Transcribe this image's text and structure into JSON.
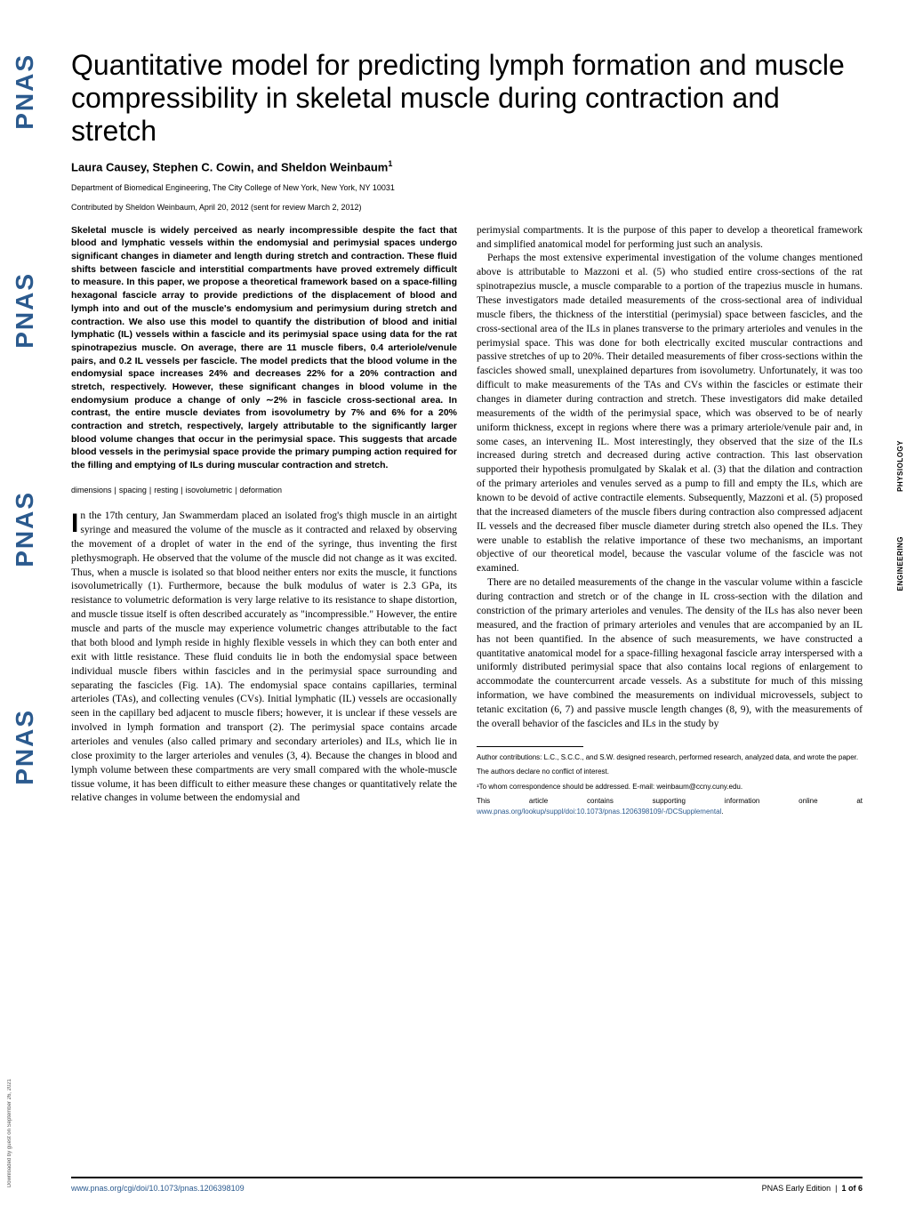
{
  "logo_text": "PNAS",
  "download_note": "Downloaded by guest on September 26, 2021",
  "title": "Quantitative model for predicting lymph formation and muscle compressibility in skeletal muscle during contraction and stretch",
  "authors_html": "Laura Causey, Stephen C. Cowin, and Sheldon Weinbaum",
  "author_sup": "1",
  "affiliation": "Department of Biomedical Engineering, The City College of New York, New York, NY 10031",
  "contributed": "Contributed by Sheldon Weinbaum, April 20, 2012 (sent for review March 2, 2012)",
  "abstract": "Skeletal muscle is widely perceived as nearly incompressible despite the fact that blood and lymphatic vessels within the endomysial and perimysial spaces undergo significant changes in diameter and length during stretch and contraction. These fluid shifts between fascicle and interstitial compartments have proved extremely difficult to measure. In this paper, we propose a theoretical framework based on a space-filling hexagonal fascicle array to provide predictions of the displacement of blood and lymph into and out of the muscle's endomysium and perimysium during stretch and contraction. We also use this model to quantify the distribution of blood and initial lymphatic (IL) vessels within a fascicle and its perimysial space using data for the rat spinotrapezius muscle. On average, there are 11 muscle fibers, 0.4 arteriole/venule pairs, and 0.2 IL vessels per fascicle. The model predicts that the blood volume in the endomysial space increases 24% and decreases 22% for a 20% contraction and stretch, respectively. However, these significant changes in blood volume in the endomysium produce a change of only ∼2% in fascicle cross-sectional area. In contrast, the entire muscle deviates from isovolumetry by 7% and 6% for a 20% contraction and stretch, respectively, largely attributable to the significantly larger blood volume changes that occur in the perimysial space. This suggests that arcade blood vessels in the perimysial space provide the primary pumping action required for the filling and emptying of ILs during muscular contraction and stretch.",
  "keywords": [
    "dimensions",
    "spacing",
    "resting",
    "isovolumetric",
    "deformation"
  ],
  "col1_body_first": "n the 17th century, Jan Swammerdam placed an isolated frog's thigh muscle in an airtight syringe and measured the volume of the muscle as it contracted and relaxed by observing the movement of a droplet of water in the end of the syringe, thus inventing the first plethysmograph. He observed that the volume of the muscle did not change as it was excited. Thus, when a muscle is isolated so that blood neither enters nor exits the muscle, it functions isovolumetrically (1). Furthermore, because the bulk modulus of water is 2.3 GPa, its resistance to volumetric deformation is very large relative to its resistance to shape distortion, and muscle tissue itself is often described accurately as \"incompressible.\" However, the entire muscle and parts of the muscle may experience volumetric changes attributable to the fact that both blood and lymph reside in highly flexible vessels in which they can both enter and exit with little resistance. These fluid conduits lie in both the endomysial space between individual muscle fibers within fascicles and in the perimysial space surrounding and separating the fascicles (Fig. 1A). The endomysial space contains capillaries, terminal arterioles (TAs), and collecting venules (CVs). Initial lymphatic (IL) vessels are occasionally seen in the capillary bed adjacent to muscle fibers; however, it is unclear if these vessels are involved in lymph formation and transport (2). The perimysial space contains arcade arterioles and venules (also called primary and secondary arterioles) and ILs, which lie in close proximity to the larger arterioles and venules (3, 4). Because the changes in blood and lymph volume between these compartments are very small compared with the whole-muscle tissue volume, it has been difficult to either measure these changes or quantitatively relate the relative changes in volume between the endomysial and",
  "col2_p1": "perimysial compartments. It is the purpose of this paper to develop a theoretical framework and simplified anatomical model for performing just such an analysis.",
  "col2_p2": "Perhaps the most extensive experimental investigation of the volume changes mentioned above is attributable to Mazzoni et al. (5) who studied entire cross-sections of the rat spinotrapezius muscle, a muscle comparable to a portion of the trapezius muscle in humans. These investigators made detailed measurements of the cross-sectional area of individual muscle fibers, the thickness of the interstitial (perimysial) space between fascicles, and the cross-sectional area of the ILs in planes transverse to the primary arterioles and venules in the perimysial space. This was done for both electrically excited muscular contractions and passive stretches of up to 20%. Their detailed measurements of fiber cross-sections within the fascicles showed small, unexplained departures from isovolumetry. Unfortunately, it was too difficult to make measurements of the TAs and CVs within the fascicles or estimate their changes in diameter during contraction and stretch. These investigators did make detailed measurements of the width of the perimysial space, which was observed to be of nearly uniform thickness, except in regions where there was a primary arteriole/venule pair and, in some cases, an intervening IL. Most interestingly, they observed that the size of the ILs increased during stretch and decreased during active contraction. This last observation supported their hypothesis promulgated by Skalak et al. (3) that the dilation and contraction of the primary arterioles and venules served as a pump to fill and empty the ILs, which are known to be devoid of active contractile elements. Subsequently, Mazzoni et al. (5) proposed that the increased diameters of the muscle fibers during contraction also compressed adjacent IL vessels and the decreased fiber muscle diameter during stretch also opened the ILs. They were unable to establish the relative importance of these two mechanisms, an important objective of our theoretical model, because the vascular volume of the fascicle was not examined.",
  "col2_p3": "There are no detailed measurements of the change in the vascular volume within a fascicle during contraction and stretch or of the change in IL cross-section with the dilation and constriction of the primary arterioles and venules. The density of the ILs has also never been measured, and the fraction of primary arterioles and venules that are accompanied by an IL has not been quantified. In the absence of such measurements, we have constructed a quantitative anatomical model for a space-filling hexagonal fascicle array interspersed with a uniformly distributed perimysial space that also contains local regions of enlargement to accommodate the countercurrent arcade vessels. As a substitute for much of this missing information, we have combined the measurements on individual microvessels, subject to tetanic excitation (6, 7) and passive muscle length changes (8, 9), with the measurements of the overall behavior of the fascicles and ILs in the study by",
  "footnotes": {
    "contrib": "Author contributions: L.C., S.C.C., and S.W. designed research, performed research, analyzed data, and wrote the paper.",
    "conflict": "The authors declare no conflict of interest.",
    "corresp": "¹To whom correspondence should be addressed. E-mail: weinbaum@ccny.cuny.edu.",
    "supp_pre": "This article contains supporting information online at ",
    "supp_link": "www.pnas.org/lookup/suppl/doi:10.1073/pnas.1206398109/-/DCSupplemental",
    "supp_post": "."
  },
  "footer": {
    "left": "www.pnas.org/cgi/doi/10.1073/pnas.1206398109",
    "right_journal": "PNAS Early Edition",
    "right_page": "1 of 6"
  },
  "side_tabs": [
    "PHYSIOLOGY",
    "ENGINEERING"
  ],
  "colors": {
    "link": "#2b5a8e",
    "logo": "#2b5a8e",
    "text": "#000000",
    "background": "#ffffff"
  },
  "typography": {
    "title_fontsize": 32,
    "title_family": "Arial",
    "body_fontsize": 11.5,
    "body_family": "Georgia",
    "abstract_fontsize": 10.5,
    "footnote_fontsize": 8
  }
}
